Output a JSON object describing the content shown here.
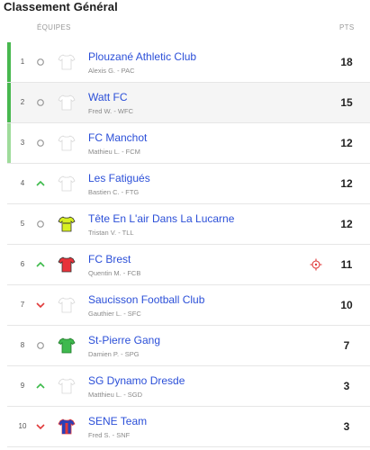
{
  "title": "Classement Général",
  "header": {
    "teams": "ÉQUIPES",
    "points": "PTS"
  },
  "colors": {
    "top3_bar": "#48b84f",
    "top3_bar_light": "#9fdc9b",
    "link": "#2b4fd8",
    "up": "#3cba4a",
    "down": "#e03a3a",
    "neutral": "#9a9a9a"
  },
  "rows": [
    {
      "rank": "1",
      "trend": "neutral",
      "jersey": "white-jersey-icon",
      "name": "Plouzané Athletic Club",
      "sub": "Alexis G. - PAC",
      "pts": "18"
    },
    {
      "rank": "2",
      "trend": "neutral",
      "jersey": "white-jersey-icon",
      "name": "Watt FC",
      "sub": "Fred W. - WFC",
      "pts": "15"
    },
    {
      "rank": "3",
      "trend": "neutral",
      "jersey": "white-jersey-icon",
      "name": "FC Manchot",
      "sub": "Mathieu L. - FCM",
      "pts": "12"
    },
    {
      "rank": "4",
      "trend": "up",
      "jersey": "white-jersey-icon",
      "name": "Les Fatigués",
      "sub": "Bastien C. - FTG",
      "pts": "12"
    },
    {
      "rank": "5",
      "trend": "neutral",
      "jersey": "yellow-jersey-icon",
      "name": "Tête En L'air Dans La Lucarne",
      "sub": "Tristan V. - TLL",
      "pts": "12"
    },
    {
      "rank": "6",
      "trend": "up",
      "jersey": "red-jersey-icon",
      "name": "FC Brest",
      "sub": "Quentin M. - FCB",
      "pts": "11"
    },
    {
      "rank": "7",
      "trend": "down",
      "jersey": "white-jersey-icon",
      "name": "Saucisson Football Club",
      "sub": "Gauthier L. - SFC",
      "pts": "10"
    },
    {
      "rank": "8",
      "trend": "neutral",
      "jersey": "green-jersey-icon",
      "name": "St-Pierre Gang",
      "sub": "Damien P. - SPG",
      "pts": "7"
    },
    {
      "rank": "9",
      "trend": "up",
      "jersey": "white-jersey-icon",
      "name": "SG Dynamo Dresde",
      "sub": "Matthieu L. - SGD",
      "pts": "3"
    },
    {
      "rank": "10",
      "trend": "down",
      "jersey": "blue-red-jersey-icon",
      "name": "SENE Team",
      "sub": "Fred S. - SNF",
      "pts": "3"
    }
  ]
}
